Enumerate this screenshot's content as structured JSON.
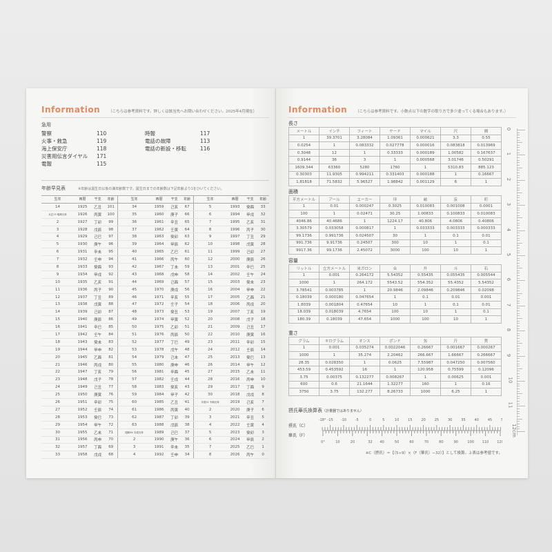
{
  "left": {
    "title": "Information",
    "note": "（こちらは参考資料です。詳しくは該当先へお問い合わせください。2025年4月現在）",
    "emergency_title": "急用",
    "emergency": [
      [
        "警察",
        "110"
      ],
      [
        "火事・救急",
        "119"
      ],
      [
        "海上保安庁",
        "118"
      ],
      [
        "災害用伝言ダイヤル",
        "171"
      ],
      [
        "電報",
        "115"
      ]
    ],
    "emergency2": [
      [
        "時報",
        "117"
      ],
      [
        "電話の故障",
        "113"
      ],
      [
        "電話の新設・移転",
        "116"
      ]
    ],
    "age_title": "年齢早見表",
    "age_note": "※年齢は誕生日以後の満年齢数です。誕生日までの年齢数は下記年齢より1をひいてください。",
    "age_headers": [
      "生年",
      "西暦",
      "干支",
      "年齢"
    ],
    "age_columns": [
      [
        [
          "14",
          "1925",
          "乙丑",
          "101"
        ],
        [
          "大正15 昭和元年",
          "1926",
          "丙寅",
          "100"
        ],
        [
          "2",
          "1927",
          "丁卯",
          "99"
        ],
        [
          "3",
          "1928",
          "戊辰",
          "98"
        ],
        [
          "4",
          "1929",
          "己巳",
          "97"
        ],
        [
          "5",
          "1930",
          "庚午",
          "96"
        ],
        [
          "6",
          "1931",
          "辛未",
          "95"
        ],
        [
          "7",
          "1932",
          "壬申",
          "94"
        ],
        [
          "8",
          "1933",
          "癸酉",
          "93"
        ],
        [
          "9",
          "1934",
          "甲戌",
          "92"
        ],
        [
          "10",
          "1935",
          "乙亥",
          "91"
        ],
        [
          "11",
          "1936",
          "丙子",
          "90"
        ],
        [
          "12",
          "1937",
          "丁丑",
          "89"
        ],
        [
          "13",
          "1938",
          "戊寅",
          "88"
        ],
        [
          "14",
          "1939",
          "己卯",
          "87"
        ],
        [
          "15",
          "1940",
          "庚辰",
          "86"
        ],
        [
          "16",
          "1941",
          "辛巳",
          "85"
        ],
        [
          "17",
          "1942",
          "壬午",
          "84"
        ],
        [
          "18",
          "1943",
          "癸未",
          "83"
        ],
        [
          "19",
          "1944",
          "甲申",
          "82"
        ],
        [
          "20",
          "1945",
          "乙酉",
          "81"
        ],
        [
          "21",
          "1946",
          "丙戌",
          "80"
        ],
        [
          "22",
          "1947",
          "丁亥",
          "79"
        ],
        [
          "23",
          "1948",
          "戊子",
          "78"
        ],
        [
          "24",
          "1949",
          "己丑",
          "77"
        ],
        [
          "25",
          "1950",
          "庚寅",
          "76"
        ],
        [
          "26",
          "1951",
          "辛卯",
          "75"
        ],
        [
          "27",
          "1952",
          "壬辰",
          "74"
        ],
        [
          "28",
          "1953",
          "癸巳",
          "73"
        ],
        [
          "29",
          "1954",
          "甲午",
          "72"
        ],
        [
          "30",
          "1955",
          "乙未",
          "71"
        ],
        [
          "31",
          "1956",
          "丙申",
          "70"
        ],
        [
          "32",
          "1957",
          "丁酉",
          "69"
        ],
        [
          "33",
          "1958",
          "戊戌",
          "68"
        ]
      ],
      [
        [
          "34",
          "1959",
          "己亥",
          "67"
        ],
        [
          "35",
          "1960",
          "庚子",
          "66"
        ],
        [
          "36",
          "1961",
          "辛丑",
          "65"
        ],
        [
          "37",
          "1962",
          "壬寅",
          "64"
        ],
        [
          "38",
          "1963",
          "癸卯",
          "63"
        ],
        [
          "39",
          "1964",
          "甲辰",
          "62"
        ],
        [
          "40",
          "1965",
          "乙巳",
          "61"
        ],
        [
          "41",
          "1966",
          "丙午",
          "60"
        ],
        [
          "42",
          "1967",
          "丁未",
          "59"
        ],
        [
          "43",
          "1968",
          "戊申",
          "58"
        ],
        [
          "44",
          "1969",
          "己酉",
          "57"
        ],
        [
          "45",
          "1970",
          "庚戌",
          "56"
        ],
        [
          "46",
          "1971",
          "辛亥",
          "55"
        ],
        [
          "47",
          "1972",
          "壬子",
          "54"
        ],
        [
          "48",
          "1973",
          "癸丑",
          "53"
        ],
        [
          "49",
          "1974",
          "甲寅",
          "52"
        ],
        [
          "50",
          "1975",
          "乙卯",
          "51"
        ],
        [
          "51",
          "1976",
          "丙辰",
          "50"
        ],
        [
          "52",
          "1977",
          "丁巳",
          "49"
        ],
        [
          "53",
          "1978",
          "戊午",
          "48"
        ],
        [
          "54",
          "1979",
          "己未",
          "47"
        ],
        [
          "55",
          "1980",
          "庚申",
          "46"
        ],
        [
          "56",
          "1981",
          "辛酉",
          "45"
        ],
        [
          "57",
          "1982",
          "壬戌",
          "44"
        ],
        [
          "58",
          "1983",
          "癸亥",
          "43"
        ],
        [
          "59",
          "1984",
          "甲子",
          "42"
        ],
        [
          "60",
          "1985",
          "乙丑",
          "41"
        ],
        [
          "61",
          "1986",
          "丙寅",
          "40"
        ],
        [
          "62",
          "1987",
          "丁卯",
          "39"
        ],
        [
          "63",
          "1988",
          "戊辰",
          "38"
        ],
        [
          "昭和64 平成元年",
          "1989",
          "己巳",
          "37"
        ],
        [
          "2",
          "1990",
          "庚午",
          "36"
        ],
        [
          "3",
          "1991",
          "辛未",
          "35"
        ],
        [
          "4",
          "1992",
          "壬申",
          "34"
        ]
      ],
      [
        [
          "5",
          "1993",
          "癸酉",
          "33"
        ],
        [
          "6",
          "1994",
          "甲戌",
          "32"
        ],
        [
          "7",
          "1995",
          "乙亥",
          "31"
        ],
        [
          "8",
          "1996",
          "丙子",
          "30"
        ],
        [
          "9",
          "1997",
          "丁丑",
          "29"
        ],
        [
          "10",
          "1998",
          "戊寅",
          "28"
        ],
        [
          "11",
          "1999",
          "己卯",
          "27"
        ],
        [
          "12",
          "2000",
          "庚辰",
          "26"
        ],
        [
          "13",
          "2001",
          "辛巳",
          "25"
        ],
        [
          "14",
          "2002",
          "壬午",
          "24"
        ],
        [
          "15",
          "2003",
          "癸未",
          "23"
        ],
        [
          "16",
          "2004",
          "甲申",
          "22"
        ],
        [
          "17",
          "2005",
          "乙酉",
          "21"
        ],
        [
          "18",
          "2006",
          "丙戌",
          "20"
        ],
        [
          "19",
          "2007",
          "丁亥",
          "19"
        ],
        [
          "20",
          "2008",
          "戊子",
          "18"
        ],
        [
          "21",
          "2009",
          "己丑",
          "17"
        ],
        [
          "22",
          "2010",
          "庚寅",
          "16"
        ],
        [
          "23",
          "2011",
          "辛卯",
          "15"
        ],
        [
          "24",
          "2012",
          "壬辰",
          "14"
        ],
        [
          "25",
          "2013",
          "癸巳",
          "13"
        ],
        [
          "26",
          "2014",
          "甲午",
          "12"
        ],
        [
          "27",
          "2015",
          "乙未",
          "11"
        ],
        [
          "28",
          "2016",
          "丙申",
          "10"
        ],
        [
          "29",
          "2017",
          "丁酉",
          "9"
        ],
        [
          "30",
          "2018",
          "戊戌",
          "8"
        ],
        [
          "平成31 令和元年",
          "2019",
          "己亥",
          "7"
        ],
        [
          "2",
          "2020",
          "庚子",
          "6"
        ],
        [
          "3",
          "2021",
          "辛丑",
          "5"
        ],
        [
          "4",
          "2022",
          "壬寅",
          "4"
        ],
        [
          "5",
          "2023",
          "癸卯",
          "3"
        ],
        [
          "6",
          "2024",
          "甲辰",
          "2"
        ],
        [
          "7",
          "2025",
          "乙巳",
          "1"
        ],
        [
          "8",
          "2026",
          "丙午",
          "0"
        ]
      ]
    ]
  },
  "right": {
    "title": "Information",
    "note": "（こちらは参考資料です。小数点以下の数字の取り方で多少違ってくる場合もあります。）",
    "tables": [
      {
        "title": "長さ",
        "rows": [
          [
            "メートル",
            "インチ",
            "フィート",
            "ヤード",
            "マイル",
            "尺",
            "間"
          ],
          [
            "1",
            "39.3701",
            "3.28084",
            "1.09361",
            "0.000621",
            "3.3",
            "0.55"
          ],
          [
            "0.0254",
            "1",
            "0.083332",
            "0.027778",
            "0.000016",
            "0.083818",
            "0.013969"
          ],
          [
            "0.3048",
            "12",
            "1",
            "0.33333",
            "0.000189",
            "1.00582",
            "0.167637"
          ],
          [
            "0.9144",
            "36",
            "3",
            "1",
            "0.000568",
            "3.01746",
            "0.50291"
          ],
          [
            "1609.344",
            "63360",
            "5280",
            "1760",
            "1",
            "5310.83",
            "885.123"
          ],
          [
            "0.30303",
            "11.9305",
            "0.994211",
            "0.331403",
            "0.000188",
            "1",
            "0.16667"
          ],
          [
            "1.81818",
            "71.5832",
            "5.96527",
            "1.98842",
            "0.001129",
            "6",
            "1"
          ]
        ]
      },
      {
        "title": "面積",
        "rows": [
          [
            "平方メートル",
            "アール",
            "エーカー",
            "坪",
            "畝",
            "反",
            "町"
          ],
          [
            "1",
            "0.01",
            "0.000247",
            "0.3025",
            "0.010083",
            "0.001008",
            "0.0001"
          ],
          [
            "100",
            "1",
            "0.02471",
            "30.25",
            "1.00833",
            "0.100833",
            "0.010083"
          ],
          [
            "4046.86",
            "40.4686",
            "1",
            "1224.17",
            "40.806",
            "4.0806",
            "0.40806"
          ],
          [
            "3.30579",
            "0.033058",
            "0.000817",
            "1",
            "0.033333",
            "0.003333",
            "0.000333"
          ],
          [
            "99.1736",
            "0.991736",
            "0.024507",
            "30",
            "1",
            "0.1",
            "0.01"
          ],
          [
            "991.736",
            "9.91736",
            "0.24507",
            "300",
            "10",
            "1",
            "0.1"
          ],
          [
            "9917.36",
            "99.1736",
            "2.45072",
            "3000",
            "100",
            "10",
            "1"
          ]
        ]
      },
      {
        "title": "容量",
        "rows": [
          [
            "リットル",
            "立方メートル",
            "米ガロン",
            "合",
            "升",
            "斗",
            "石"
          ],
          [
            "1",
            "0.001",
            "0.264172",
            "5.54352",
            "0.55435",
            "0.055435",
            "0.005544"
          ],
          [
            "1000",
            "1",
            "264.172",
            "5543.52",
            "554.352",
            "55.4352",
            "5.54352"
          ],
          [
            "3.78541",
            "0.003785",
            "1",
            "20.9846",
            "2.09846",
            "0.209846",
            "0.02098"
          ],
          [
            "0.18039",
            "0.000180",
            "0.047654",
            "1",
            "0.1",
            "0.01",
            "0.001"
          ],
          [
            "1.8039",
            "0.001804",
            "0.47654",
            "10",
            "1",
            "0.1",
            "0.01"
          ],
          [
            "18.039",
            "0.018039",
            "4.7654",
            "100",
            "10",
            "1",
            "0.1"
          ],
          [
            "180.39",
            "0.18039",
            "47.654",
            "1000",
            "100",
            "10",
            "1"
          ]
        ]
      },
      {
        "title": "重さ",
        "rows": [
          [
            "グラム",
            "キログラム",
            "オンス",
            "ポンド",
            "匁",
            "斤",
            "貫"
          ],
          [
            "1",
            "0.001",
            "0.035274",
            "0.0022046",
            "0.26667",
            "0.001667",
            "0.000267"
          ],
          [
            "1000",
            "1",
            "35.274",
            "2.20462",
            "266.667",
            "1.66667",
            "0.266667"
          ],
          [
            "28.35",
            "0.028350",
            "1",
            "0.0625",
            "7.55987",
            "0.047250",
            "0.007560"
          ],
          [
            "453.59",
            "0.453592",
            "16",
            "1",
            "120.958",
            "0.75599",
            "0.12096"
          ],
          [
            "3.75",
            "0.00375",
            "0.132277",
            "0.008267",
            "1",
            "0.00625",
            "0.001"
          ],
          [
            "600",
            "0.6",
            "21.1644",
            "1.32277",
            "160",
            "1",
            "0.16"
          ],
          [
            "3750",
            "3.75",
            "132.277",
            "8.26733",
            "1000",
            "6.25",
            "1"
          ]
        ]
      }
    ],
    "temp": {
      "title": "摂氏華氏換算表",
      "subtitle": "（計量器ではありません）",
      "c_label": "摂氏（C）",
      "f_label": "華氏（F）",
      "c_ticks": [
        "-18°",
        "-15",
        "-10",
        "-5",
        "0",
        "5",
        "10",
        "15",
        "20",
        "25",
        "30",
        "35",
        "40",
        "45",
        "50"
      ],
      "f_ticks": [
        "0°",
        "10",
        "20",
        "32",
        "40",
        "50",
        "60",
        "70",
        "80",
        "90",
        "100",
        "110",
        "120"
      ],
      "note": "※C（摂氏）＝【（5÷9）×（F（華氏）−32）】として換算。上表は参考値です。"
    },
    "ruler": [
      "0",
      "1",
      "2",
      "3",
      "4",
      "5",
      "6",
      "7",
      "8",
      "9",
      "10",
      "11",
      "12cm"
    ]
  },
  "colors": {
    "accent": "#e58a60"
  }
}
